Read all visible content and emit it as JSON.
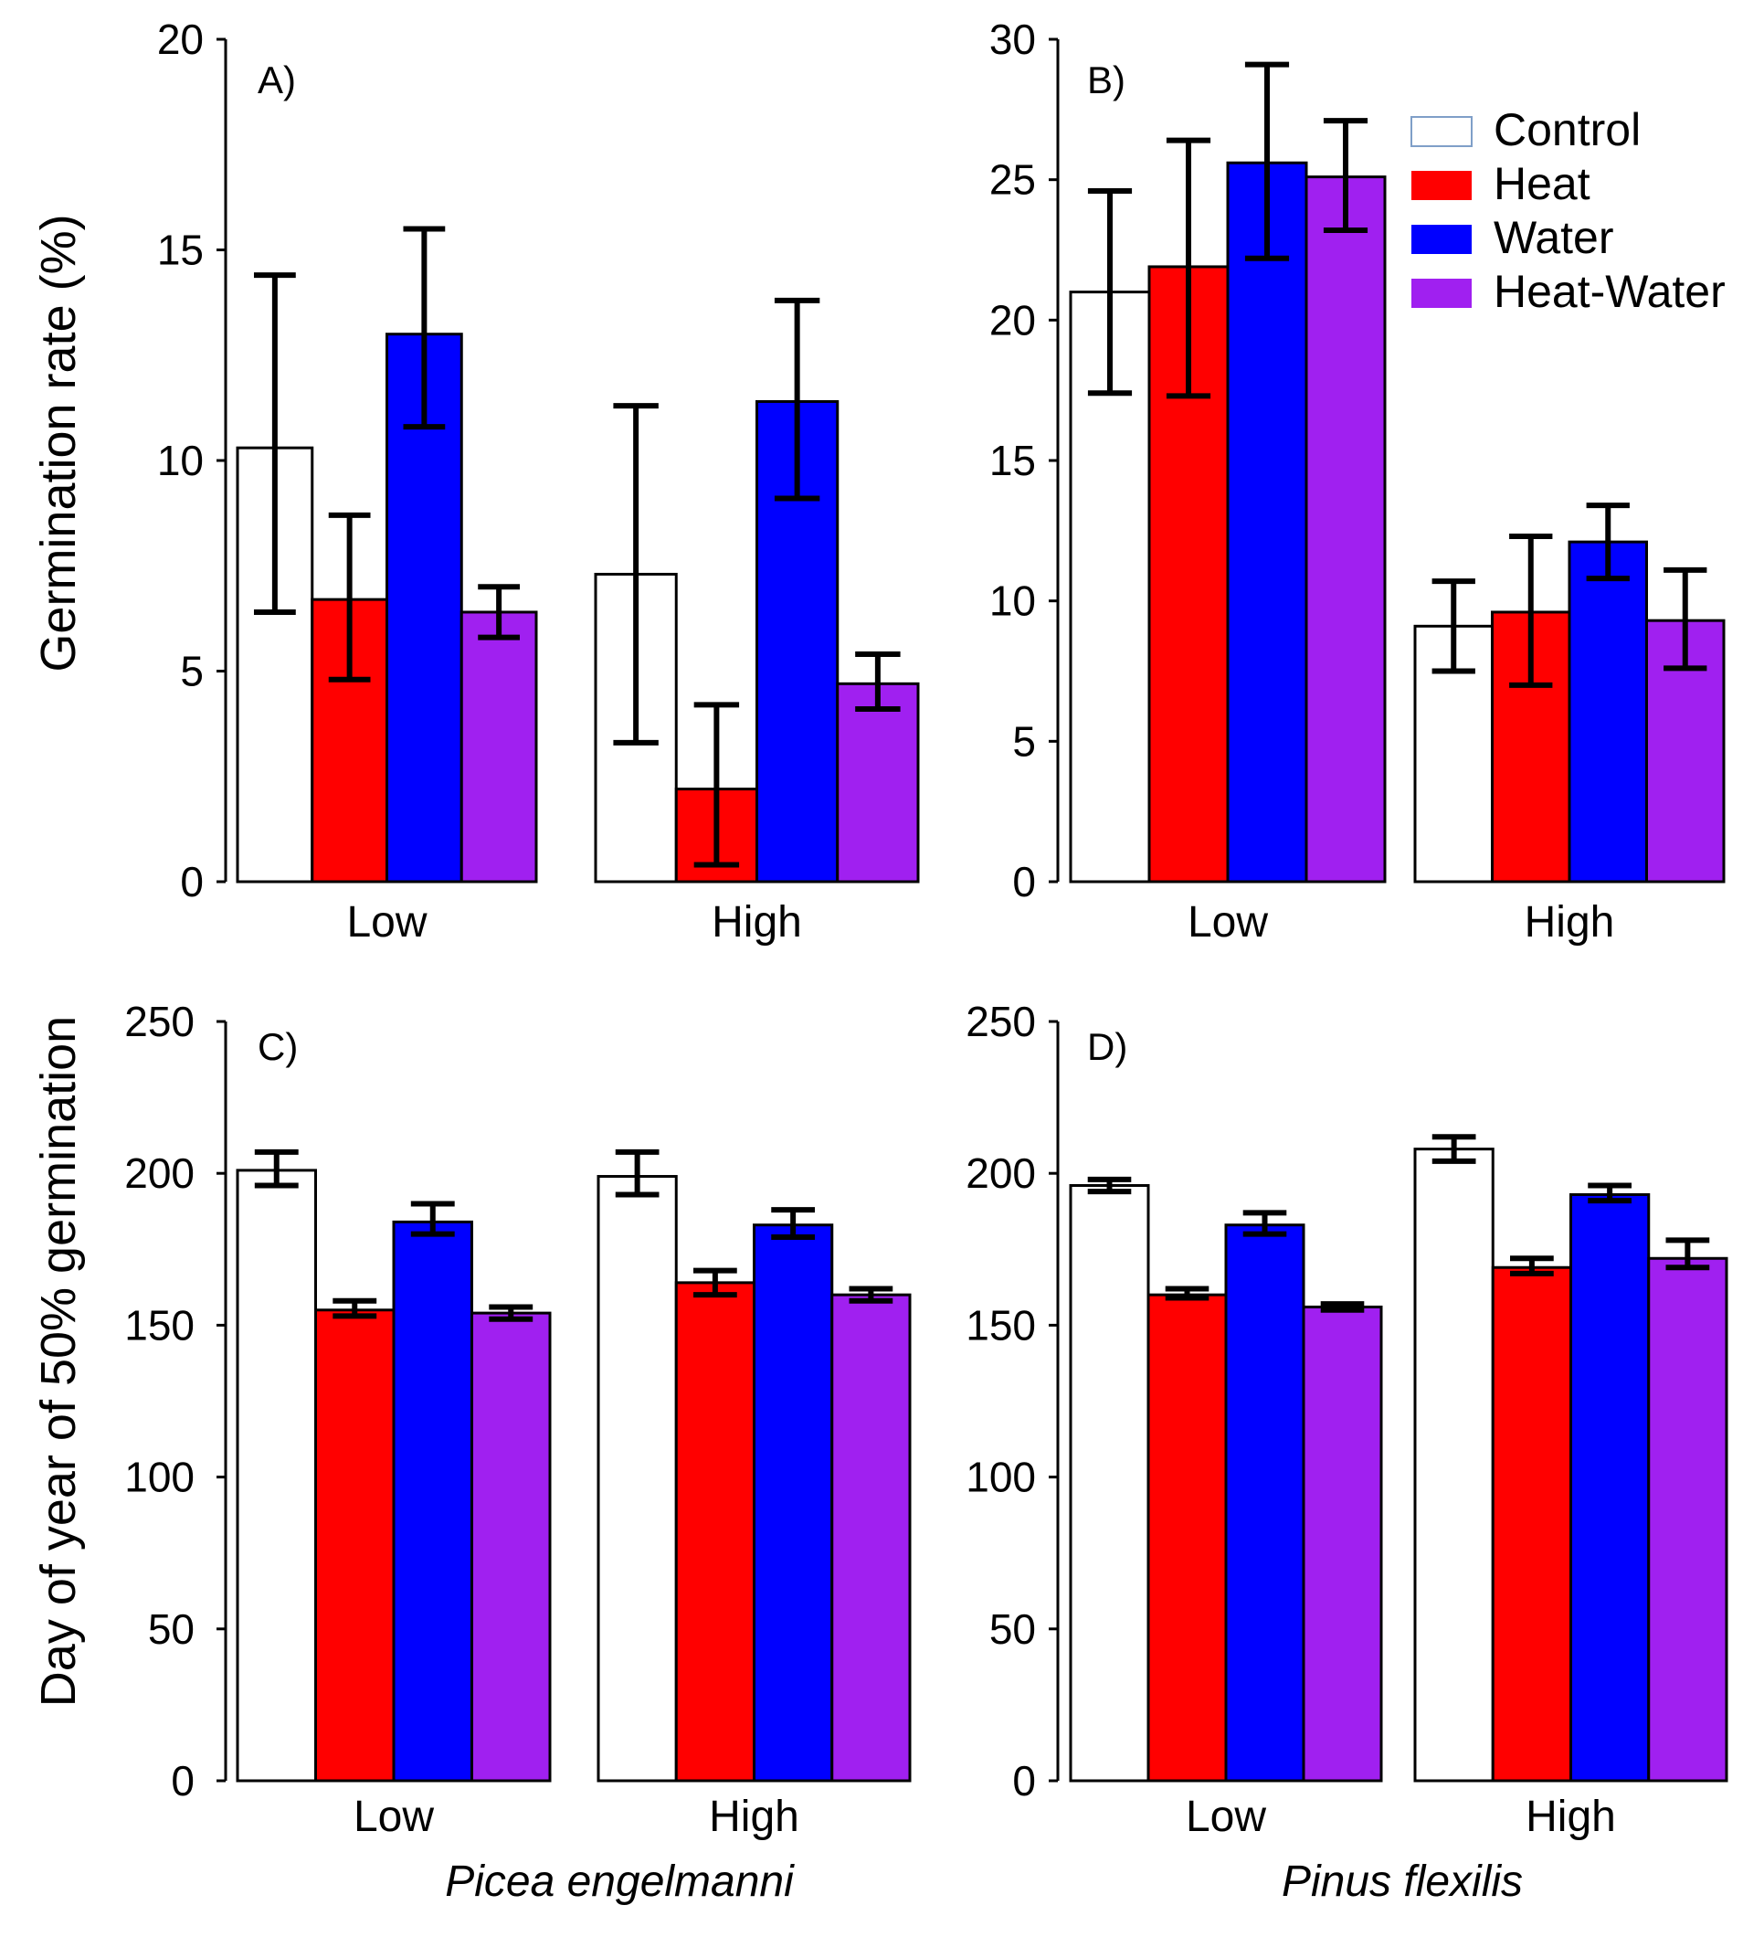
{
  "figure": {
    "ylabel_top": "Germination rate (%)",
    "ylabel_bottom": "Day of year of 50% germination",
    "species_left": "Picea engelmanni",
    "species_right": "Pinus flexilis"
  },
  "colors": {
    "Control": "#ffffff",
    "Heat": "#ff0000",
    "Water": "#0000ff",
    "Heat-Water": "#a020f0",
    "control_legend_border": "#7f9fc8"
  },
  "legend": {
    "items": [
      {
        "label": "Control",
        "color": "#ffffff"
      },
      {
        "label": "Heat",
        "color": "#ff0000"
      },
      {
        "label": "Water",
        "color": "#0000ff"
      },
      {
        "label": "Heat-Water",
        "color": "#a020f0"
      }
    ]
  },
  "chart_data": [
    {
      "panel": "A)",
      "type": "bar",
      "species": "Picea engelmanni",
      "categories": [
        "Low",
        "High"
      ],
      "ylabel": "Germination rate (%)",
      "ylim": [
        0,
        20
      ],
      "yticks": [
        0,
        5,
        10,
        15,
        20
      ],
      "series": [
        {
          "name": "Control",
          "values": [
            10.3,
            7.3
          ],
          "err_low": [
            6.4,
            3.3
          ],
          "err_high": [
            14.4,
            11.3
          ]
        },
        {
          "name": "Heat",
          "values": [
            6.7,
            2.2
          ],
          "err_low": [
            4.8,
            0.4
          ],
          "err_high": [
            8.7,
            4.2
          ]
        },
        {
          "name": "Water",
          "values": [
            13.0,
            11.4
          ],
          "err_low": [
            10.8,
            9.1
          ],
          "err_high": [
            15.5,
            13.8
          ]
        },
        {
          "name": "Heat-Water",
          "values": [
            6.4,
            4.7
          ],
          "err_low": [
            5.8,
            4.1
          ],
          "err_high": [
            7.0,
            5.4
          ]
        }
      ]
    },
    {
      "panel": "B)",
      "type": "bar",
      "species": "Pinus flexilis",
      "categories": [
        "Low",
        "High"
      ],
      "ylabel": "Germination rate (%)",
      "ylim": [
        0,
        30
      ],
      "yticks": [
        0,
        5,
        10,
        15,
        20,
        25,
        30
      ],
      "series": [
        {
          "name": "Control",
          "values": [
            21.0,
            9.1
          ],
          "err_low": [
            17.4,
            7.5
          ],
          "err_high": [
            24.6,
            10.7
          ]
        },
        {
          "name": "Heat",
          "values": [
            21.9,
            9.6
          ],
          "err_low": [
            17.3,
            7.0
          ],
          "err_high": [
            26.4,
            12.3
          ]
        },
        {
          "name": "Water",
          "values": [
            25.6,
            12.1
          ],
          "err_low": [
            22.2,
            10.8
          ],
          "err_high": [
            29.1,
            13.4
          ]
        },
        {
          "name": "Heat-Water",
          "values": [
            25.1,
            9.3
          ],
          "err_low": [
            23.2,
            7.6
          ],
          "err_high": [
            27.1,
            11.1
          ]
        }
      ]
    },
    {
      "panel": "C)",
      "type": "bar",
      "species": "Picea engelmanni",
      "categories": [
        "Low",
        "High"
      ],
      "ylabel": "Day of year of 50% germination",
      "ylim": [
        0,
        250
      ],
      "yticks": [
        0,
        50,
        100,
        150,
        200,
        250
      ],
      "series": [
        {
          "name": "Control",
          "values": [
            201,
            199
          ],
          "err_low": [
            196,
            193
          ],
          "err_high": [
            207,
            207
          ]
        },
        {
          "name": "Heat",
          "values": [
            155,
            164
          ],
          "err_low": [
            153,
            160
          ],
          "err_high": [
            158,
            168
          ]
        },
        {
          "name": "Water",
          "values": [
            184,
            183
          ],
          "err_low": [
            180,
            179
          ],
          "err_high": [
            190,
            188
          ]
        },
        {
          "name": "Heat-Water",
          "values": [
            154,
            160
          ],
          "err_low": [
            152,
            158
          ],
          "err_high": [
            156,
            162
          ]
        }
      ]
    },
    {
      "panel": "D)",
      "type": "bar",
      "species": "Pinus flexilis",
      "categories": [
        "Low",
        "High"
      ],
      "ylabel": "Day of year of 50% germination",
      "ylim": [
        0,
        250
      ],
      "yticks": [
        0,
        50,
        100,
        150,
        200,
        250
      ],
      "series": [
        {
          "name": "Control",
          "values": [
            196,
            208
          ],
          "err_low": [
            194,
            204
          ],
          "err_high": [
            198,
            212
          ]
        },
        {
          "name": "Heat",
          "values": [
            160,
            169
          ],
          "err_low": [
            159,
            167
          ],
          "err_high": [
            162,
            172
          ]
        },
        {
          "name": "Water",
          "values": [
            183,
            193
          ],
          "err_low": [
            180,
            191
          ],
          "err_high": [
            187,
            196
          ]
        },
        {
          "name": "Heat-Water",
          "values": [
            156,
            172
          ],
          "err_low": [
            155,
            169
          ],
          "err_high": [
            157,
            178
          ]
        }
      ]
    }
  ]
}
